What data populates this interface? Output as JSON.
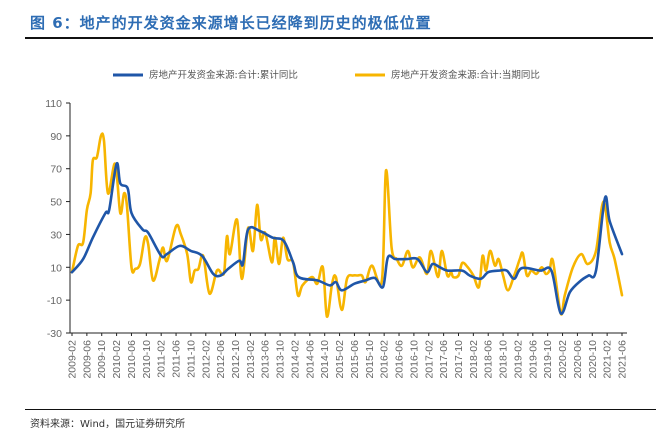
{
  "title": "图 6：地产的开发资金来源增长已经降到历史的极低位置",
  "source": "资料来源：Wind，国元证券研究所",
  "chart_data": {
    "type": "line",
    "title": "图 6：地产的开发资金来源增长已经降到历史的极低位置",
    "xlabel": "",
    "ylabel": "",
    "ylim": [
      -30,
      110
    ],
    "yticks": [
      "110",
      "90",
      "70",
      "50",
      "30",
      "10",
      "-10",
      "-30"
    ],
    "ytick_values": [
      110,
      90,
      70,
      50,
      30,
      10,
      -10,
      -30
    ],
    "x_unit": "months since 2009-02",
    "xlim": [
      0,
      148
    ],
    "xtick_labels": [
      "2009-02",
      "2009-06",
      "2009-10",
      "2010-02",
      "2010-06",
      "2010-10",
      "2011-02",
      "2011-06",
      "2011-10",
      "2012-02",
      "2012-06",
      "2012-10",
      "2013-02",
      "2013-06",
      "2013-10",
      "2014-02",
      "2014-06",
      "2014-10",
      "2015-02",
      "2015-06",
      "2015-10",
      "2016-02",
      "2016-06",
      "2016-10",
      "2017-02",
      "2017-06",
      "2017-10",
      "2018-02",
      "2018-06",
      "2018-10",
      "2019-02",
      "2019-06",
      "2019-10",
      "2020-02",
      "2020-06",
      "2020-10",
      "2021-02",
      "2021-06"
    ],
    "grid": false,
    "legend_position": "top",
    "series": [
      {
        "name": "房地产开发资金来源:合计:累计同比",
        "color": "#1f56a8",
        "points": [
          [
            0,
            7
          ],
          [
            3,
            15
          ],
          [
            5.6,
            28
          ],
          [
            9,
            43
          ],
          [
            10,
            45
          ],
          [
            12,
            73
          ],
          [
            13,
            61
          ],
          [
            15,
            58
          ],
          [
            16,
            43
          ],
          [
            19,
            33
          ],
          [
            20.5,
            31
          ],
          [
            24,
            17
          ],
          [
            25.5,
            18
          ],
          [
            29,
            23
          ],
          [
            32,
            20
          ],
          [
            35,
            17
          ],
          [
            38,
            6
          ],
          [
            40,
            5
          ],
          [
            42,
            9
          ],
          [
            45,
            14
          ],
          [
            46,
            12
          ],
          [
            47.4,
            33
          ],
          [
            50.6,
            32
          ],
          [
            54,
            28
          ],
          [
            57,
            26
          ],
          [
            59.5,
            13
          ],
          [
            61,
            4
          ],
          [
            66,
            2
          ],
          [
            69.4,
            -1
          ],
          [
            71,
            1
          ],
          [
            72.6,
            -4
          ],
          [
            76,
            0
          ],
          [
            79,
            2
          ],
          [
            81.5,
            3.5
          ],
          [
            83.7,
            -2
          ],
          [
            85,
            16
          ],
          [
            87,
            15
          ],
          [
            90,
            15
          ],
          [
            93,
            15
          ],
          [
            95.5,
            7
          ],
          [
            97,
            12
          ],
          [
            99,
            10
          ],
          [
            101,
            8
          ],
          [
            105,
            8
          ],
          [
            107,
            5
          ],
          [
            110,
            3
          ],
          [
            112,
            7
          ],
          [
            115,
            8
          ],
          [
            117,
            8
          ],
          [
            119,
            3
          ],
          [
            121,
            9.5
          ],
          [
            126,
            8
          ],
          [
            129,
            8
          ],
          [
            131.5,
            -18
          ],
          [
            134,
            -5
          ],
          [
            137,
            2
          ],
          [
            139,
            5
          ],
          [
            141,
            8
          ],
          [
            143.4,
            52
          ],
          [
            144.7,
            38
          ],
          [
            148,
            18
          ]
        ]
      },
      {
        "name": "房地产开发资金来源:合计:当期同比",
        "color": "#f7b500",
        "points": [
          [
            0,
            7
          ],
          [
            1.6,
            23
          ],
          [
            3,
            25
          ],
          [
            4,
            45
          ],
          [
            5,
            55
          ],
          [
            5.6,
            75
          ],
          [
            6.7,
            77
          ],
          [
            7.8,
            90
          ],
          [
            8.6,
            87
          ],
          [
            9.7,
            55
          ],
          [
            11.6,
            73
          ],
          [
            13,
            43
          ],
          [
            14,
            55
          ],
          [
            14.8,
            47
          ],
          [
            16,
            10
          ],
          [
            17,
            9
          ],
          [
            18.3,
            12
          ],
          [
            19.6,
            28
          ],
          [
            20.5,
            24
          ],
          [
            21.8,
            2
          ],
          [
            23.5,
            14
          ],
          [
            24.5,
            22
          ],
          [
            25.6,
            14
          ],
          [
            28,
            35
          ],
          [
            29.3,
            30
          ],
          [
            31,
            18
          ],
          [
            32,
            1
          ],
          [
            33,
            8
          ],
          [
            34,
            9
          ],
          [
            35.3,
            17
          ],
          [
            37,
            -6
          ],
          [
            39,
            8
          ],
          [
            40.3,
            6
          ],
          [
            41,
            8
          ],
          [
            41.7,
            29
          ],
          [
            42.5,
            18
          ],
          [
            44.4,
            39
          ],
          [
            45.7,
            3
          ],
          [
            47.4,
            34
          ],
          [
            48.7,
            20
          ],
          [
            49.8,
            48
          ],
          [
            50.8,
            27
          ],
          [
            52,
            31
          ],
          [
            53.8,
            13
          ],
          [
            54.6,
            28
          ],
          [
            55.7,
            12
          ],
          [
            56.8,
            28
          ],
          [
            58,
            15
          ],
          [
            59.5,
            13
          ],
          [
            60.8,
            -7
          ],
          [
            62,
            -1
          ],
          [
            64.6,
            4
          ],
          [
            66,
            0
          ],
          [
            67.5,
            10
          ],
          [
            68.6,
            -20
          ],
          [
            70,
            0
          ],
          [
            71,
            4
          ],
          [
            72.6,
            -16
          ],
          [
            74,
            3
          ],
          [
            75.6,
            5
          ],
          [
            76.8,
            5
          ],
          [
            78,
            5
          ],
          [
            79,
            1
          ],
          [
            80.7,
            11
          ],
          [
            83.4,
            2
          ],
          [
            84.5,
            69
          ],
          [
            86,
            22
          ],
          [
            87.4,
            15
          ],
          [
            88.8,
            11
          ],
          [
            90.4,
            20
          ],
          [
            91.7,
            10
          ],
          [
            93.6,
            16
          ],
          [
            95.5,
            6
          ],
          [
            96.6,
            20
          ],
          [
            98.5,
            4
          ],
          [
            99.5,
            20
          ],
          [
            101,
            5
          ],
          [
            102,
            7
          ],
          [
            102.6,
            4
          ],
          [
            104,
            5
          ],
          [
            105,
            12.6
          ],
          [
            106.5,
            10
          ],
          [
            108,
            5
          ],
          [
            109.5,
            -2
          ],
          [
            110.5,
            17
          ],
          [
            111.4,
            8
          ],
          [
            112.5,
            20
          ],
          [
            113.8,
            11
          ],
          [
            114.8,
            15
          ],
          [
            116,
            5
          ],
          [
            117.3,
            -4
          ],
          [
            119,
            5
          ],
          [
            120.5,
            15
          ],
          [
            121.3,
            18.5
          ],
          [
            122.4,
            5
          ],
          [
            123.6,
            8
          ],
          [
            125,
            6
          ],
          [
            126.4,
            10
          ],
          [
            127.5,
            6
          ],
          [
            128.5,
            8
          ],
          [
            129.4,
            14
          ],
          [
            131.5,
            -18
          ],
          [
            132.6,
            -7
          ],
          [
            134.8,
            10
          ],
          [
            137,
            18
          ],
          [
            138.8,
            12
          ],
          [
            141,
            20
          ],
          [
            143,
            50
          ],
          [
            144.7,
            25
          ],
          [
            146,
            15
          ],
          [
            148,
            -7
          ]
        ]
      }
    ]
  }
}
